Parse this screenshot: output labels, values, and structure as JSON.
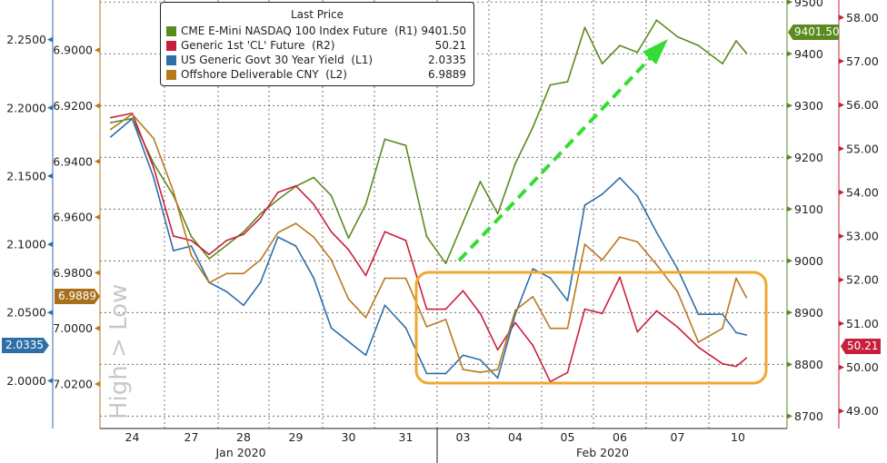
{
  "watermark": "High > Low",
  "legend": {
    "title": "Last Price",
    "items": [
      {
        "name": "CME E-Mini NASDAQ 100 Index Future  (R1)",
        "value": "9401.50",
        "color": "#5b8a1e"
      },
      {
        "name": "Generic 1st 'CL' Future  (R2)",
        "value": "50.21",
        "color": "#c8203c"
      },
      {
        "name": "US Generic Govt 30 Year Yield  (L1)",
        "value": "2.0335",
        "color": "#2e6fa8"
      },
      {
        "name": "Offshore Deliverable CNY  (L2)",
        "value": "6.9889",
        "color": "#b8791e"
      }
    ]
  },
  "price_tags": {
    "r1": "9401.50",
    "r2": "50.21",
    "l1": "2.0335",
    "l2": "6.9889"
  },
  "chart_data": {
    "type": "line",
    "x_tick_labels": [
      "24",
      "27",
      "28",
      "29",
      "30",
      "31",
      "03",
      "04",
      "05",
      "06",
      "07",
      "10"
    ],
    "x_days": [
      "2020-01-24",
      "2020-01-27",
      "2020-01-28",
      "2020-01-29",
      "2020-01-30",
      "2020-01-31",
      "2020-02-03",
      "2020-02-04",
      "2020-02-05",
      "2020-02-06",
      "2020-02-07",
      "2020-02-10"
    ],
    "month_labels": [
      "Jan 2020",
      "Feb 2020"
    ],
    "axes": {
      "L1": {
        "ticks": [
          "2.2500",
          "2.2000",
          "2.1500",
          "2.1000",
          "2.0500",
          "2.0000"
        ],
        "range": [
          1.965,
          2.279
        ],
        "inverted": false,
        "color": "#2e6fa8"
      },
      "L2": {
        "ticks": [
          "6.9000",
          "6.9200",
          "6.9400",
          "6.9600",
          "6.9800",
          "7.0000",
          "7.0200"
        ],
        "range": [
          6.882,
          7.036
        ],
        "inverted": true,
        "color": "#b8791e"
      },
      "R1": {
        "ticks": [
          "9500",
          "9400",
          "9300",
          "9200",
          "9100",
          "9000",
          "8900",
          "8800",
          "8700"
        ],
        "range": [
          8676,
          9504
        ],
        "inverted": false,
        "color": "#5b8a1e"
      },
      "R2": {
        "ticks": [
          "58.00",
          "57.00",
          "56.00",
          "55.00",
          "54.00",
          "53.00",
          "52.00",
          "51.00",
          "50.00",
          "49.00"
        ],
        "range": [
          48.6,
          58.4
        ],
        "inverted": false,
        "color": "#c8203c"
      }
    },
    "grid": true,
    "x": [
      "2020-01-24 04:00",
      "2020-01-24 12:00",
      "2020-01-24 20:00",
      "2020-01-27 04:00",
      "2020-01-27 12:00",
      "2020-01-27 20:00",
      "2020-01-28 04:00",
      "2020-01-28 12:00",
      "2020-01-28 20:00",
      "2020-01-29 04:00",
      "2020-01-29 12:00",
      "2020-01-29 20:00",
      "2020-01-30 04:00",
      "2020-01-30 12:00",
      "2020-01-30 20:00",
      "2020-01-31 04:00",
      "2020-01-31 12:00",
      "2020-01-31 20:00",
      "2020-02-03 04:00",
      "2020-02-03 12:00",
      "2020-02-03 20:00",
      "2020-02-04 04:00",
      "2020-02-04 12:00",
      "2020-02-04 20:00",
      "2020-02-05 04:00",
      "2020-02-05 12:00",
      "2020-02-05 20:00",
      "2020-02-06 04:00",
      "2020-02-06 12:00",
      "2020-02-06 20:00",
      "2020-02-07 04:00",
      "2020-02-07 12:00",
      "2020-02-07 20:00",
      "2020-02-10 04:00",
      "2020-02-10 08:00",
      "2020-02-10 11:00"
    ],
    "series": [
      {
        "name": "CME E-Mini NASDAQ 100 Index Future",
        "axis": "R1",
        "color": "#5b8a1e",
        "values": [
          9267,
          9275,
          9188,
          9126,
          9047,
          9004,
          9030,
          9056,
          9091,
          9118,
          9144,
          9161,
          9126,
          9044,
          9109,
          9235,
          9223,
          9047,
          8995,
          9074,
          9153,
          9091,
          9188,
          9258,
          9340,
          9346,
          9451,
          9381,
          9416,
          9403,
          9465,
          9433,
          9416,
          9381,
          9425,
          9401.5
        ]
      },
      {
        "name": "Generic 1st 'CL' Future",
        "axis": "R2",
        "color": "#c8203c",
        "values": [
          55.71,
          55.81,
          54.56,
          53.0,
          52.9,
          52.58,
          52.9,
          53.04,
          53.42,
          54.0,
          54.15,
          53.73,
          53.1,
          52.69,
          52.1,
          53.1,
          52.9,
          51.33,
          51.33,
          51.75,
          51.23,
          50.4,
          51.02,
          50.5,
          49.67,
          49.88,
          51.33,
          51.23,
          52.06,
          50.81,
          51.29,
          50.92,
          50.46,
          50.08,
          50.02,
          50.21
        ]
      },
      {
        "name": "US Generic Govt 30 Year Yield",
        "axis": "L1",
        "color": "#2e6fa8",
        "values": [
          2.1787,
          2.192,
          2.1487,
          2.0953,
          2.0987,
          2.072,
          2.0653,
          2.0553,
          2.072,
          2.1053,
          2.0987,
          2.0753,
          2.0387,
          2.0287,
          2.0187,
          2.0553,
          2.0387,
          2.0053,
          2.0053,
          2.0187,
          2.0153,
          2.002,
          2.0487,
          2.082,
          2.0753,
          2.0587,
          2.1287,
          2.1367,
          2.1487,
          2.1353,
          2.1087,
          2.082,
          2.0487,
          2.0487,
          2.0353,
          2.0335
        ]
      },
      {
        "name": "Offshore Deliverable CNY",
        "axis": "L2",
        "color": "#b8791e",
        "values": [
          6.9285,
          6.923,
          6.9318,
          6.9508,
          6.9738,
          6.9836,
          6.9803,
          6.9803,
          6.9754,
          6.9656,
          6.9623,
          6.9672,
          6.9754,
          6.9895,
          6.9961,
          6.982,
          6.982,
          6.9994,
          6.9968,
          7.0148,
          7.0158,
          7.0148,
          6.9935,
          6.9886,
          7.0,
          7.0,
          6.9698,
          6.9754,
          6.9672,
          6.9689,
          6.9771,
          6.9869,
          7.005,
          7.0,
          6.982,
          6.9889
        ]
      }
    ],
    "annotations": {
      "highlight_box_color": "#f0a830",
      "arrow_color": "#33dd33",
      "arrow_direction": "up-right"
    }
  }
}
